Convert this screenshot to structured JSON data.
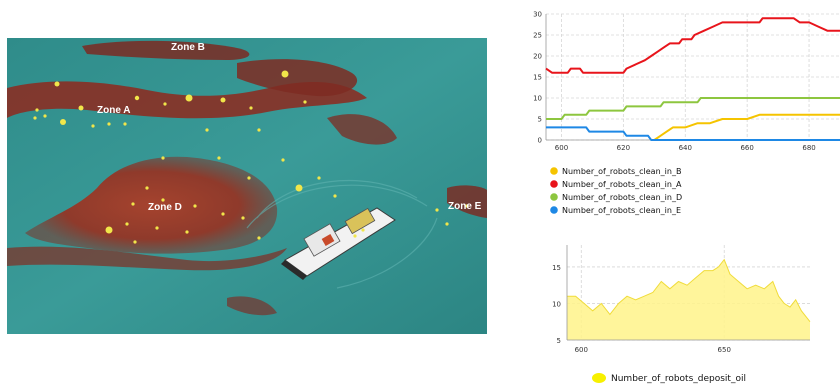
{
  "scene": {
    "zone_labels": [
      "Zone B",
      "Zone A",
      "Zone D",
      "Zone E"
    ]
  },
  "chart_data": [
    {
      "type": "line",
      "xlim": [
        595,
        690
      ],
      "ylim": [
        0,
        30
      ],
      "x_ticks": [
        600,
        620,
        640,
        660,
        680
      ],
      "y_ticks": [
        0,
        5,
        10,
        15,
        20,
        25,
        30
      ],
      "grid": true,
      "legend_position": "bottom",
      "series": [
        {
          "name": "Number_of_robots_clean_in_B",
          "color": "#f5c400",
          "points": [
            [
              630,
              0
            ],
            [
              632,
              1
            ],
            [
              634,
              2
            ],
            [
              636,
              3
            ],
            [
              640,
              3
            ],
            [
              644,
              4
            ],
            [
              648,
              4
            ],
            [
              652,
              5
            ],
            [
              656,
              5
            ],
            [
              660,
              5
            ],
            [
              664,
              6
            ],
            [
              672,
              6
            ],
            [
              680,
              6
            ],
            [
              690,
              6
            ]
          ]
        },
        {
          "name": "Number_of_robots_clean_in_A",
          "color": "#e8141b",
          "points": [
            [
              595,
              17
            ],
            [
              597,
              16
            ],
            [
              602,
              16
            ],
            [
              603,
              17
            ],
            [
              606,
              17
            ],
            [
              607,
              16
            ],
            [
              620,
              16
            ],
            [
              621,
              17
            ],
            [
              624,
              18
            ],
            [
              627,
              19
            ],
            [
              629,
              20
            ],
            [
              631,
              21
            ],
            [
              633,
              22
            ],
            [
              635,
              23
            ],
            [
              638,
              23
            ],
            [
              639,
              24
            ],
            [
              642,
              24
            ],
            [
              643,
              25
            ],
            [
              646,
              26
            ],
            [
              649,
              27
            ],
            [
              652,
              28
            ],
            [
              664,
              28
            ],
            [
              665,
              29
            ],
            [
              675,
              29
            ],
            [
              677,
              28
            ],
            [
              680,
              28
            ],
            [
              683,
              27
            ],
            [
              686,
              26
            ],
            [
              690,
              26
            ]
          ]
        },
        {
          "name": "Number_of_robots_clean_in_D",
          "color": "#8dc63f",
          "points": [
            [
              595,
              5
            ],
            [
              600,
              5
            ],
            [
              601,
              6
            ],
            [
              608,
              6
            ],
            [
              609,
              7
            ],
            [
              620,
              7
            ],
            [
              621,
              8
            ],
            [
              632,
              8
            ],
            [
              633,
              9
            ],
            [
              644,
              9
            ],
            [
              645,
              10
            ],
            [
              690,
              10
            ]
          ]
        },
        {
          "name": "Number_of_robots_clean_in_E",
          "color": "#1e88e5",
          "points": [
            [
              595,
              3
            ],
            [
              608,
              3
            ],
            [
              609,
              2
            ],
            [
              620,
              2
            ],
            [
              621,
              1
            ],
            [
              628,
              1
            ],
            [
              629,
              0
            ],
            [
              690,
              0
            ]
          ]
        }
      ]
    },
    {
      "type": "area",
      "xlim": [
        595,
        680
      ],
      "ylim": [
        5,
        18
      ],
      "x_ticks": [
        600,
        650
      ],
      "y_ticks": [
        5,
        10,
        15
      ],
      "grid": true,
      "legend_position": "bottom",
      "series": [
        {
          "name": "Number_of_robots_deposit_oil",
          "color": "#fff38a",
          "points": [
            [
              595,
              11.0
            ],
            [
              598,
              11.0
            ],
            [
              601,
              10.0
            ],
            [
              604,
              9.0
            ],
            [
              607,
              10.0
            ],
            [
              610,
              8.5
            ],
            [
              613,
              10.0
            ],
            [
              616,
              11.0
            ],
            [
              619,
              10.5
            ],
            [
              622,
              11.0
            ],
            [
              625,
              11.5
            ],
            [
              628,
              13.0
            ],
            [
              631,
              12.0
            ],
            [
              634,
              13.0
            ],
            [
              637,
              12.5
            ],
            [
              640,
              13.5
            ],
            [
              643,
              14.5
            ],
            [
              646,
              14.5
            ],
            [
              648,
              15.0
            ],
            [
              650,
              16.0
            ],
            [
              652,
              14.0
            ],
            [
              655,
              13.0
            ],
            [
              658,
              12.0
            ],
            [
              661,
              12.5
            ],
            [
              664,
              12.0
            ],
            [
              667,
              13.0
            ],
            [
              669,
              11.0
            ],
            [
              671,
              10.0
            ],
            [
              673,
              9.5
            ],
            [
              675,
              10.5
            ],
            [
              677,
              9.0
            ],
            [
              680,
              7.5
            ]
          ]
        }
      ]
    }
  ]
}
